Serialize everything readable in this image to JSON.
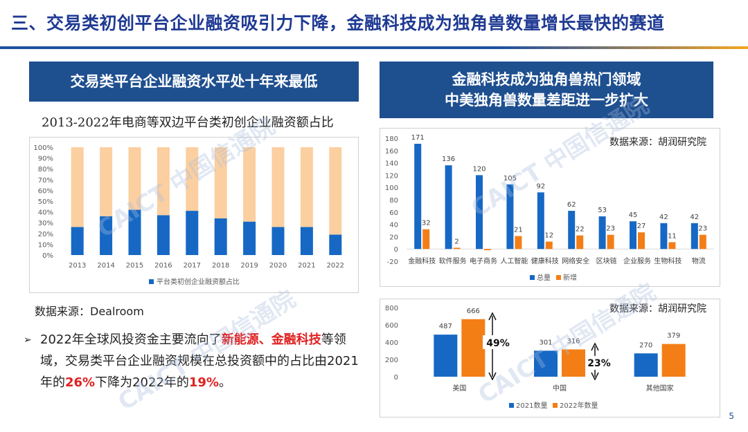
{
  "page": {
    "title": "三、交易类初创平台企业融资吸引力下降，金融科技成为独角兽数量增长最快的赛道",
    "page_number": "5",
    "watermark": "CAICT 中国信通院"
  },
  "left": {
    "banner": "交易类平台企业融资水平处十年来最低",
    "chart_title": "2013-2022年电商等双边平台类初创企业融资额占比",
    "source": "数据来源：Dealroom",
    "bullet": {
      "p1": "2022年全球风投资金主要流向了",
      "hl1": "新能源、金融科技",
      "p2": "等领域，交易类平台企业融资规模在总投资额中的占比由2021年的",
      "hl2": "26%",
      "p3": "下降为2022年的",
      "hl3": "19%",
      "p4": "。"
    }
  },
  "right": {
    "banner_line1": "金融科技成为独角兽热门领域",
    "banner_line2": "中美独角兽数量差距进一步扩大",
    "source1": "数据来源：胡润研究院",
    "source2": "数据来源：胡润研究院",
    "annotation_us": "49%",
    "annotation_cn": "23%"
  },
  "colors": {
    "blue": "#1668c4",
    "orange": "#f47e16",
    "peach": "#fbcfa0",
    "banner": "#1e4f8f"
  },
  "chart_data": [
    {
      "type": "bar",
      "stacked": true,
      "categories": [
        "2013",
        "2014",
        "2015",
        "2016",
        "2017",
        "2018",
        "2019",
        "2020",
        "2021",
        "2022"
      ],
      "series": [
        {
          "name": "平台类初创企业融资额占比",
          "values": [
            26,
            36,
            42,
            37,
            41,
            34,
            31,
            26,
            26,
            19
          ]
        },
        {
          "values": [
            74,
            64,
            58,
            63,
            59,
            66,
            69,
            74,
            74,
            81
          ]
        }
      ],
      "ylim": [
        0,
        100
      ],
      "yticks": [
        "0%",
        "10%",
        "20%",
        "30%",
        "40%",
        "50%",
        "60%",
        "70%",
        "80%",
        "90%",
        "100%"
      ],
      "legend": "bottom"
    },
    {
      "type": "bar",
      "categories": [
        "金融科技",
        "软件服务",
        "电子商务",
        "人工智能",
        "健康科技",
        "网络安全",
        "区块链",
        "企业服务",
        "生物科技",
        "物流"
      ],
      "series": [
        {
          "name": "总量",
          "values": [
            171,
            136,
            120,
            105,
            92,
            62,
            53,
            45,
            42,
            42
          ]
        },
        {
          "name": "新增",
          "values": [
            32,
            2,
            -2,
            21,
            12,
            22,
            23,
            27,
            11,
            23
          ]
        }
      ],
      "data_labels": {
        "总量": [
          "171",
          "136",
          "120",
          "105",
          "92",
          "62",
          "53",
          "45",
          "42",
          "42"
        ],
        "新增": [
          "32",
          "2",
          "",
          "21",
          "12",
          "22",
          "23",
          "27",
          "11",
          "23"
        ]
      },
      "ylim": [
        -20,
        180
      ],
      "yticks": [
        -20,
        0,
        20,
        40,
        60,
        80,
        100,
        120,
        140,
        160,
        180
      ],
      "legend": "bottom"
    },
    {
      "type": "bar",
      "categories": [
        "美国",
        "中国",
        "其他国家"
      ],
      "series": [
        {
          "name": "2021数量",
          "values": [
            487,
            301,
            270
          ]
        },
        {
          "name": "2022年数量",
          "values": [
            666,
            316,
            379
          ]
        }
      ],
      "ylim": [
        0,
        800
      ],
      "yticks": [
        0,
        200,
        400,
        600,
        800
      ],
      "legend": "bottom"
    }
  ]
}
